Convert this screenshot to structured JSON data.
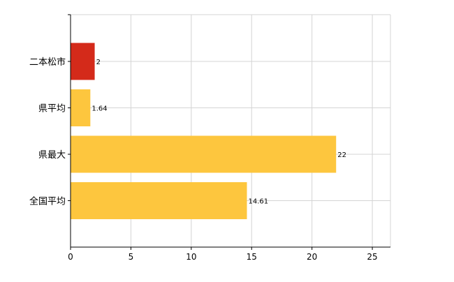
{
  "chart_data": {
    "type": "bar",
    "orientation": "horizontal",
    "title": "",
    "xlabel": "",
    "ylabel": "",
    "categories": [
      "二本松市",
      "県平均",
      "県最大",
      "全国平均"
    ],
    "values": [
      2,
      1.64,
      22,
      14.61
    ],
    "value_labels": [
      "2",
      "1.64",
      "22",
      "14.61"
    ],
    "bar_colors": [
      "#d42a1a",
      "#fdc63e",
      "#fdc63e",
      "#fdc63e"
    ],
    "xlim": [
      0,
      26.5
    ],
    "xticks": [
      0,
      5,
      10,
      15,
      20,
      25
    ],
    "grid": true,
    "legend": "none"
  }
}
